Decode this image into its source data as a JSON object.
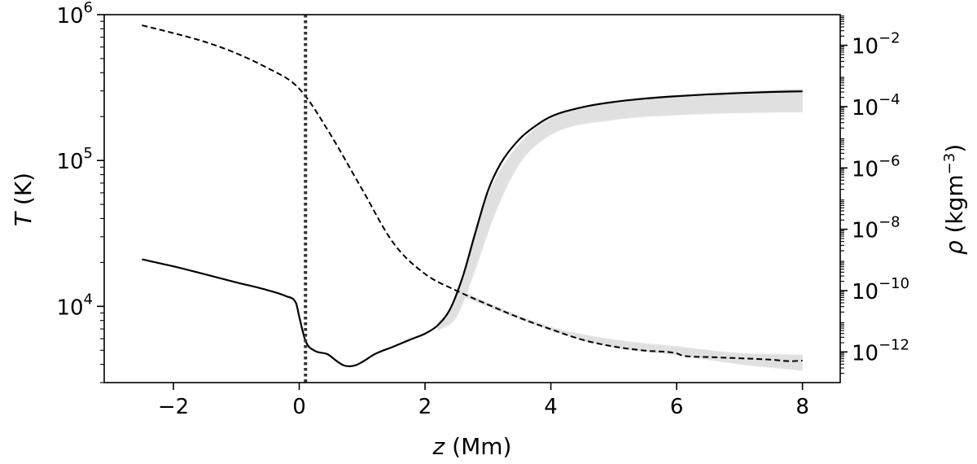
{
  "chart_data": {
    "type": "line",
    "xlabel": {
      "var": "z",
      "unit": " (Mm)"
    },
    "ylabel_left": {
      "var": "T",
      "unit": " (K)"
    },
    "ylabel_right": {
      "var": "ρ",
      "unit_pre": " (kgm",
      "unit_sup": "−3",
      "unit_post": ")"
    },
    "xlim": [
      -3.1,
      8.6
    ],
    "ylim_left": [
      3000,
      1000000
    ],
    "ylim_right": [
      1e-13,
      0.1
    ],
    "yscale_left": "log",
    "yscale_right": "log",
    "x_ticks": [
      {
        "value": -2,
        "label": "−2"
      },
      {
        "value": 0,
        "label": "0"
      },
      {
        "value": 2,
        "label": "2"
      },
      {
        "value": 4,
        "label": "4"
      },
      {
        "value": 6,
        "label": "6"
      },
      {
        "value": 8,
        "label": "8"
      }
    ],
    "y_left_ticks": [
      {
        "value": 10000,
        "base": "10",
        "exp": "4"
      },
      {
        "value": 100000,
        "base": "10",
        "exp": "5"
      },
      {
        "value": 1000000,
        "base": "10",
        "exp": "6"
      }
    ],
    "y_right_ticks": [
      {
        "value": 1e-12,
        "base": "10",
        "exp": "−12"
      },
      {
        "value": 1e-10,
        "base": "10",
        "exp": "−10"
      },
      {
        "value": 1e-08,
        "base": "10",
        "exp": "−8"
      },
      {
        "value": 1e-06,
        "base": "10",
        "exp": "−6"
      },
      {
        "value": 0.0001,
        "base": "10",
        "exp": "−4"
      },
      {
        "value": 0.01,
        "base": "10",
        "exp": "−2"
      }
    ],
    "vline": {
      "x": 0.1,
      "style": "dotted",
      "color": "#333333"
    },
    "temperature": {
      "axis": "left",
      "style": "solid",
      "color": "#000000",
      "x": [
        -2.5,
        -2.0,
        -1.5,
        -1.0,
        -0.5,
        -0.2,
        -0.05,
        0.0,
        0.1,
        0.25,
        0.45,
        0.6,
        0.7,
        0.8,
        0.9,
        1.0,
        1.2,
        1.5,
        1.8,
        2.0,
        2.2,
        2.4,
        2.6,
        2.8,
        3.0,
        3.2,
        3.5,
        3.8,
        4.0,
        4.5,
        5.0,
        5.5,
        6.0,
        6.5,
        7.0,
        7.5,
        8.0
      ],
      "y": [
        21000,
        18800,
        16600,
        14600,
        12900,
        11700,
        10500,
        8500,
        5800,
        4950,
        4700,
        4200,
        3950,
        3880,
        3950,
        4150,
        4700,
        5300,
        6000,
        6500,
        7400,
        9600,
        16000,
        32000,
        62000,
        95000,
        140000,
        178000,
        200000,
        232000,
        252000,
        266000,
        276000,
        284000,
        290000,
        295000,
        298000
      ]
    },
    "density": {
      "axis": "right",
      "style": "dashed",
      "color": "#000000",
      "x": [
        -2.5,
        -2.0,
        -1.5,
        -1.0,
        -0.5,
        -0.1,
        0.1,
        0.5,
        1.0,
        1.5,
        2.0,
        2.5,
        3.0,
        3.5,
        4.0,
        4.5,
        5.0,
        5.5,
        6.0,
        6.1,
        6.5,
        7.0,
        7.5,
        7.8,
        8.0
      ],
      "y": [
        0.045,
        0.025,
        0.013,
        0.0055,
        0.0018,
        0.0006,
        0.00022,
        1.2e-05,
        2e-07,
        3.5e-09,
        3.5e-10,
        1e-10,
        3.5e-11,
        1.3e-11,
        5.5e-12,
        2.5e-12,
        1.5e-12,
        1.1e-12,
        9e-13,
        7.5e-13,
        6.8e-13,
        6.2e-13,
        5.6e-13,
        5e-13,
        5.2e-13
      ]
    },
    "ensemble_band": {
      "color": "#dddddd",
      "description_series": [
        {
          "axis": "left",
          "x": [
            2.2,
            2.5,
            2.8,
            3.1,
            3.5,
            4.0,
            5.0,
            6.0,
            7.0,
            8.0
          ],
          "y_low": [
            6800,
            8500,
            18000,
            42000,
            95000,
            150000,
            190000,
            205000,
            212000,
            215000
          ],
          "y_high": [
            7600,
            11500,
            34000,
            72000,
            130000,
            195000,
            252000,
            280000,
            296000,
            310000
          ]
        },
        {
          "axis": "right",
          "x": [
            2.5,
            3.0,
            4.0,
            5.0,
            6.0,
            7.0,
            8.0
          ],
          "y_low": [
            8e-11,
            3e-11,
            5e-12,
            1.4e-12,
            8e-13,
            4e-13,
            2.5e-13
          ],
          "y_high": [
            1.2e-10,
            4e-11,
            6.5e-12,
            2.5e-12,
            1.5e-12,
            9e-13,
            8e-13
          ]
        }
      ]
    }
  }
}
